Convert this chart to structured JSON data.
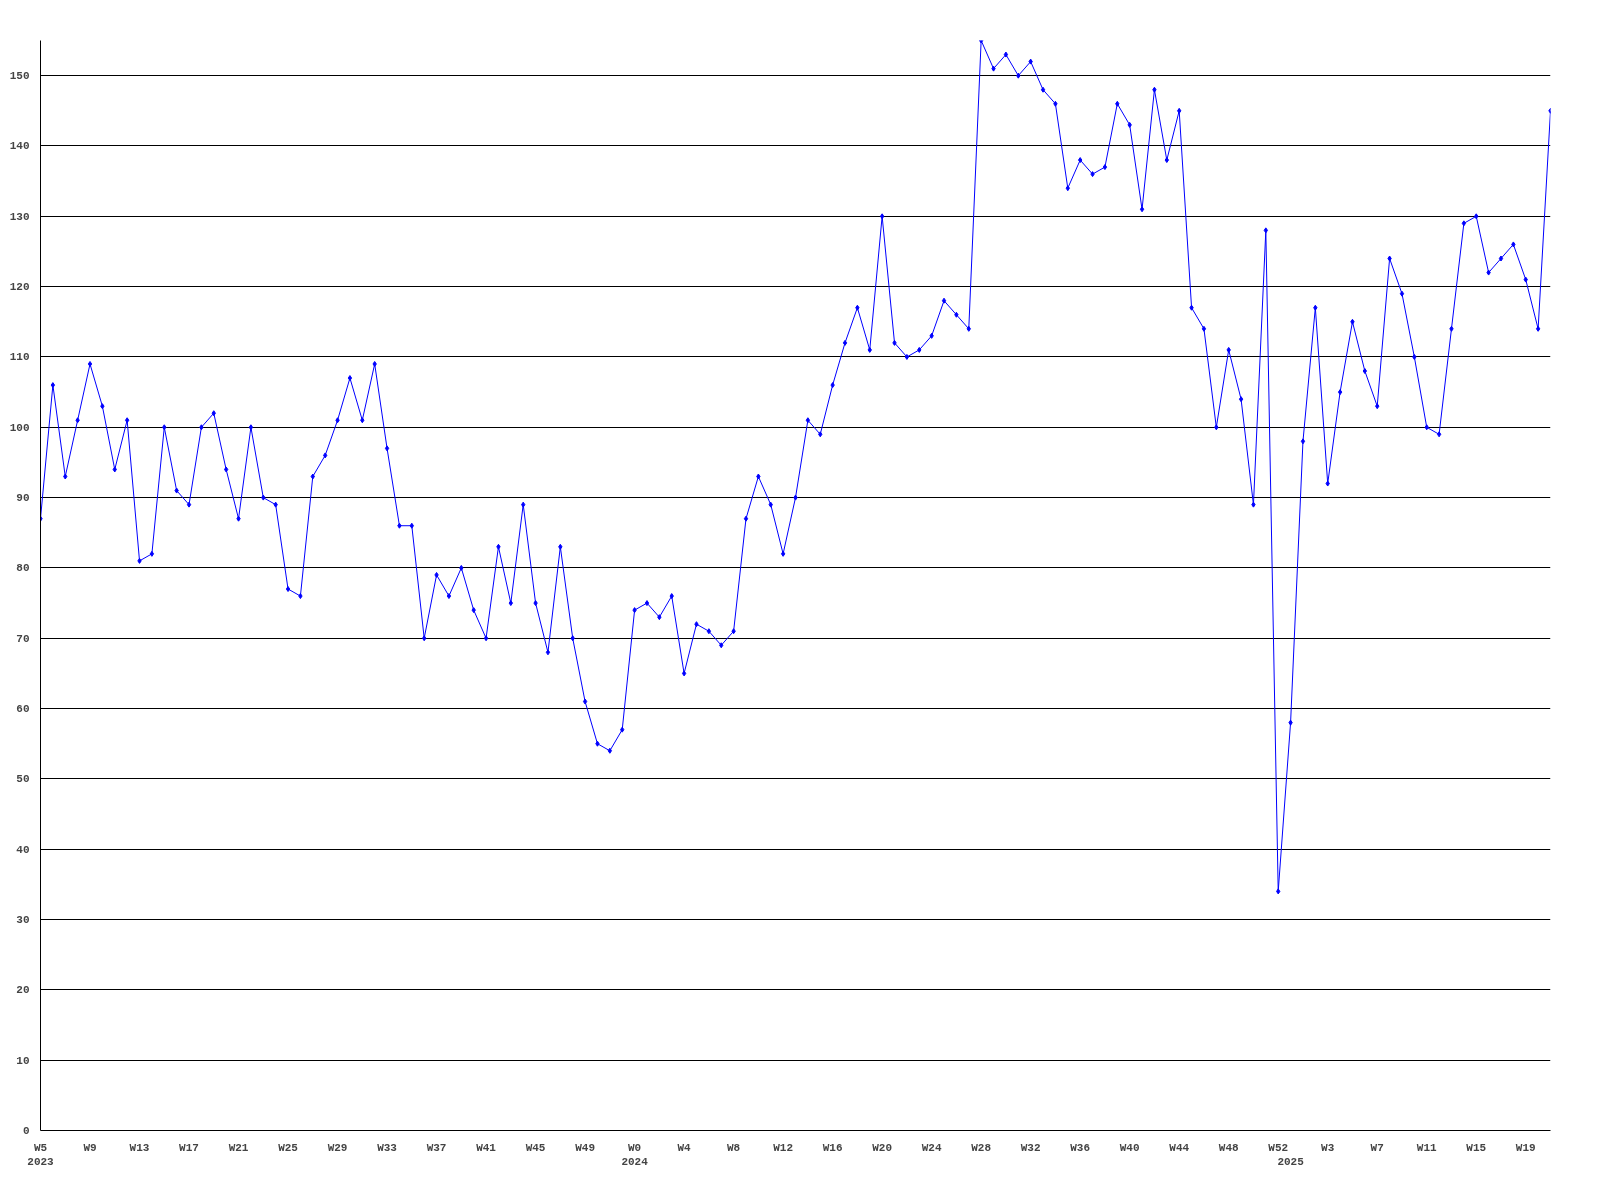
{
  "chart_data": {
    "type": "line",
    "categories": [
      "W5\n2023",
      null,
      null,
      null,
      "W9",
      null,
      null,
      null,
      "W13",
      null,
      null,
      null,
      "W17",
      null,
      null,
      null,
      "W21",
      null,
      null,
      null,
      "W25",
      null,
      null,
      null,
      "W29",
      null,
      null,
      null,
      "W33",
      null,
      null,
      null,
      "W37",
      null,
      null,
      null,
      "W41",
      null,
      null,
      null,
      "W45",
      null,
      null,
      null,
      "W49",
      null,
      null,
      null,
      "W0\n2024",
      null,
      null,
      null,
      "W4",
      null,
      null,
      null,
      "W8",
      null,
      null,
      null,
      "W12",
      null,
      null,
      null,
      "W16",
      null,
      null,
      null,
      "W20",
      null,
      null,
      null,
      "W24",
      null,
      null,
      null,
      "W28",
      null,
      null,
      null,
      "W32",
      null,
      null,
      null,
      "W36",
      null,
      null,
      null,
      "W40",
      null,
      null,
      null,
      "W44",
      null,
      null,
      null,
      "W48",
      null,
      null,
      null,
      "W52",
      "\n2025",
      null,
      null,
      "W3",
      null,
      null,
      null,
      "W7",
      null,
      null,
      null,
      "W11",
      null,
      null,
      null,
      "W15",
      null,
      null,
      null,
      "W19",
      null,
      null
    ],
    "series": [
      {
        "color": "#0000ff",
        "values": [
          87,
          106,
          93,
          101,
          109,
          103,
          94,
          101,
          81,
          82,
          100,
          91,
          89,
          100,
          102,
          94,
          87,
          100,
          90,
          89,
          77,
          76,
          93,
          96,
          101,
          107,
          101,
          109,
          97,
          86,
          86,
          70,
          79,
          76,
          80,
          74,
          70,
          83,
          75,
          89,
          75,
          68,
          83,
          70,
          61,
          55,
          54,
          57,
          74,
          75,
          73,
          76,
          65,
          72,
          71,
          69,
          71,
          87,
          93,
          89,
          82,
          90,
          101,
          99,
          106,
          112,
          117,
          111,
          130,
          112,
          110,
          111,
          113,
          118,
          116,
          114,
          155,
          151,
          153,
          150,
          152,
          148,
          146,
          134,
          138,
          136,
          137,
          146,
          143,
          131,
          148,
          138,
          145,
          117,
          114,
          100,
          111,
          104,
          89,
          128,
          34,
          58,
          98,
          117,
          92,
          105,
          115,
          108,
          103,
          124,
          119,
          110,
          100,
          99,
          114,
          129,
          130,
          122,
          124,
          126,
          121,
          114,
          145
        ]
      }
    ],
    "ylim": [
      0,
      155
    ],
    "yticks": [
      0,
      10,
      20,
      30,
      40,
      50,
      60,
      70,
      80,
      90,
      100,
      110,
      120,
      130,
      140,
      150
    ],
    "grid": "y",
    "marker": "diamond",
    "line_style": "solid"
  }
}
